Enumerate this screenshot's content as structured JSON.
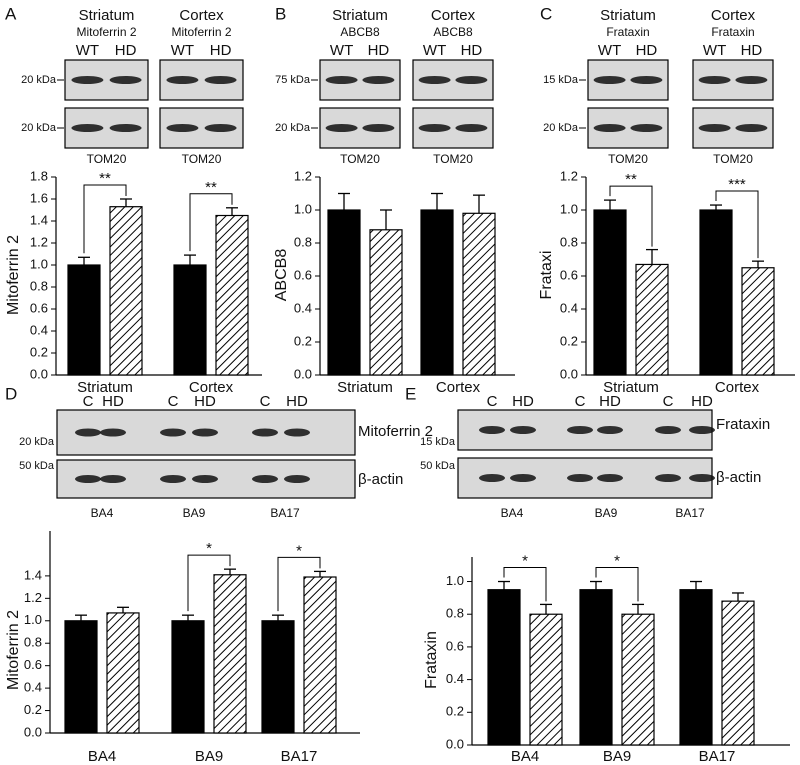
{
  "chart_data": [
    {
      "type": "bar",
      "panel": "A",
      "ylabel": "Mitoferrin 2",
      "blot": {
        "groups": [
          {
            "title": "Striatum",
            "subtitle": "Mitoferrin 2",
            "lanes": [
              "WT",
              "HD"
            ]
          },
          {
            "title": "Cortex",
            "subtitle": "Mitoferrin 2",
            "lanes": [
              "WT",
              "HD"
            ]
          }
        ],
        "markers": [
          "20 kDa",
          "20 kDa"
        ],
        "loading": [
          "TOM20",
          "TOM20"
        ]
      },
      "categories": [
        "Striatum",
        "Cortex"
      ],
      "series": [
        {
          "color": "#000000",
          "hatch": false,
          "values": [
            1.0,
            1.0
          ],
          "errors": [
            0.07,
            0.09
          ]
        },
        {
          "color": "#000000",
          "hatch": true,
          "values": [
            1.53,
            1.45
          ],
          "errors": [
            0.07,
            0.07
          ]
        }
      ],
      "significance": [
        "**",
        "**"
      ],
      "ylim": [
        0,
        1.8
      ],
      "yticks": [
        {
          "value": 0,
          "label": "0.0"
        },
        0.2,
        0.4,
        0.6,
        0.8,
        {
          "value": 1,
          "label": "1.0"
        },
        1.2,
        1.4,
        1.6,
        1.8
      ]
    },
    {
      "type": "bar",
      "panel": "B",
      "ylabel": "ABCB8",
      "blot": {
        "groups": [
          {
            "title": "Striatum",
            "subtitle": "ABCB8",
            "lanes": [
              "WT",
              "HD"
            ]
          },
          {
            "title": "Cortex",
            "subtitle": "ABCB8",
            "lanes": [
              "WT",
              "HD"
            ]
          }
        ],
        "markers": [
          "75 kDa",
          "20 kDa"
        ],
        "loading": [
          "TOM20",
          "TOM20"
        ]
      },
      "categories": [
        "Striatum",
        "Cortex"
      ],
      "series": [
        {
          "color": "#000000",
          "hatch": false,
          "values": [
            1.0,
            1.0
          ],
          "errors": [
            0.1,
            0.1
          ]
        },
        {
          "color": "#000000",
          "hatch": true,
          "values": [
            0.88,
            0.98
          ],
          "errors": [
            0.12,
            0.11
          ]
        }
      ],
      "significance": [
        null,
        null
      ],
      "ylim": [
        0,
        1.2
      ],
      "yticks": [
        {
          "value": 0,
          "label": "0.0"
        },
        0.2,
        0.4,
        0.6,
        0.8,
        {
          "value": 1,
          "label": "1.0"
        },
        1.2
      ]
    },
    {
      "type": "bar",
      "panel": "C",
      "ylabel": "Frataxi",
      "blot": {
        "groups": [
          {
            "title": "Striatum",
            "subtitle": "Frataxin",
            "lanes": [
              "WT",
              "HD"
            ]
          },
          {
            "title": "Cortex",
            "subtitle": "Frataxin",
            "lanes": [
              "WT",
              "HD"
            ]
          }
        ],
        "markers": [
          "15 kDa",
          "20 kDa"
        ],
        "loading": [
          "TOM20",
          "TOM20"
        ]
      },
      "categories": [
        "Striatum",
        "Cortex"
      ],
      "series": [
        {
          "color": "#000000",
          "hatch": false,
          "values": [
            1.0,
            1.0
          ],
          "errors": [
            0.06,
            0.03
          ]
        },
        {
          "color": "#000000",
          "hatch": true,
          "values": [
            0.67,
            0.65
          ],
          "errors": [
            0.09,
            0.04
          ]
        }
      ],
      "significance": [
        "**",
        "***"
      ],
      "ylim": [
        0,
        1.2
      ],
      "yticks": [
        {
          "value": 0,
          "label": "0.0"
        },
        0.2,
        0.4,
        0.6,
        0.8,
        {
          "value": 1,
          "label": "1.0"
        },
        1.2
      ]
    },
    {
      "type": "bar",
      "panel": "D",
      "ylabel": "Mitoferrin 2",
      "blot": {
        "lanes": [
          "C",
          "HD",
          "C",
          "HD",
          "C",
          "HD"
        ],
        "markers": [
          "20 kDa",
          "50 kDa"
        ],
        "proteins": [
          "Mitoferrin 2",
          "β-actin"
        ],
        "groups": [
          "BA4",
          "BA9",
          "BA17"
        ]
      },
      "categories": [
        "BA4",
        "BA9",
        "BA17"
      ],
      "series": [
        {
          "color": "#000000",
          "hatch": false,
          "values": [
            1.0,
            1.0,
            1.0
          ],
          "errors": [
            0.05,
            0.05,
            0.05
          ]
        },
        {
          "color": "#000000",
          "hatch": true,
          "values": [
            1.07,
            1.41,
            1.39
          ],
          "errors": [
            0.05,
            0.05,
            0.05
          ]
        }
      ],
      "significance": [
        null,
        "*",
        "*"
      ],
      "ylim": [
        0,
        1.8
      ],
      "yticks": [
        {
          "value": 0,
          "label": "0.0"
        },
        0.2,
        0.4,
        0.6,
        0.8,
        {
          "value": 1,
          "label": "1.0"
        },
        1.2,
        1.4
      ]
    },
    {
      "type": "bar",
      "panel": "E",
      "ylabel": "Frataxin",
      "blot": {
        "lanes": [
          "C",
          "HD",
          "C",
          "HD",
          "C",
          "HD"
        ],
        "markers": [
          "15 kDa",
          "50 kDa"
        ],
        "proteins": [
          "Frataxin",
          "β-actin"
        ],
        "groups": [
          "BA4",
          "BA9",
          "BA17"
        ]
      },
      "categories": [
        "BA4",
        "BA9",
        "BA17"
      ],
      "series": [
        {
          "color": "#000000",
          "hatch": false,
          "values": [
            0.95,
            0.95,
            0.95
          ],
          "errors": [
            0.05,
            0.05,
            0.05
          ]
        },
        {
          "color": "#000000",
          "hatch": true,
          "values": [
            0.8,
            0.8,
            0.88
          ],
          "errors": [
            0.06,
            0.06,
            0.05
          ]
        }
      ],
      "significance": [
        "*",
        "*",
        null
      ],
      "ylim": [
        0,
        1.15
      ],
      "yticks": [
        {
          "value": 0,
          "label": "0.0"
        },
        0.2,
        0.4,
        0.6,
        0.8,
        {
          "value": 1,
          "label": "1.0"
        }
      ]
    }
  ]
}
